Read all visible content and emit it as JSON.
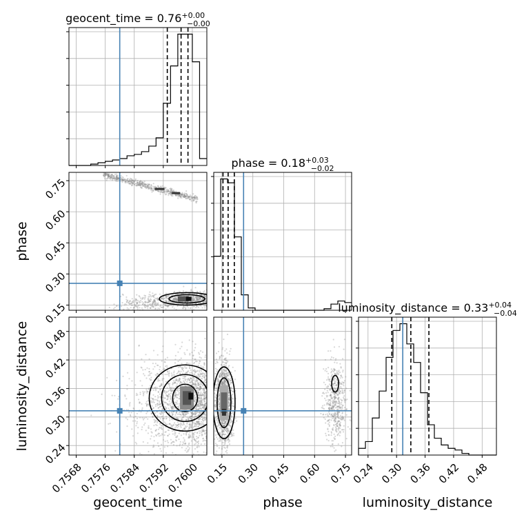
{
  "chart_data": {
    "type": "corner",
    "parameters": [
      "geocent_time",
      "phase",
      "luminosity_distance"
    ],
    "truths": {
      "geocent_time": 0.758,
      "phase": 0.255,
      "luminosity_distance": 0.313
    },
    "colors": {
      "truth": "#4682b4",
      "hist": "#000000",
      "scatter": "#8c8c8c",
      "grid": "#b0b0b0"
    },
    "panels": {
      "geocent_time": {
        "title": "geocent_time = 0.76",
        "title_sup": "+0.00",
        "title_sub": "−0.00",
        "quantiles": [
          0.75931,
          0.75969,
          0.75988
        ],
        "xlim": [
          0.7566,
          0.7604
        ],
        "bins_start": 0.7566,
        "bins_width": 0.0002,
        "counts": [
          0,
          0,
          0,
          1,
          2,
          3,
          4,
          5,
          7,
          8,
          10,
          14,
          20,
          45,
          72,
          95,
          95,
          75,
          5
        ],
        "ticks": [
          "0.7568",
          "0.7576",
          "0.7584",
          "0.7592",
          "0.7600"
        ],
        "tick_values": [
          0.7568,
          0.7576,
          0.7584,
          0.7592,
          0.76
        ]
      },
      "phase": {
        "title": "phase = 0.18",
        "title_sup": "+0.03",
        "title_sub": "−0.02",
        "quantiles": [
          0.155,
          0.18,
          0.21
        ],
        "xlim": [
          0.11,
          0.78
        ],
        "bins_start": 0.11,
        "bins_width": 0.0335,
        "counts": [
          70,
          170,
          165,
          95,
          20,
          3,
          0,
          0,
          0,
          0,
          0,
          0,
          0,
          0,
          0,
          0,
          2,
          8,
          12,
          10
        ],
        "ticks": [
          "0.15",
          "0.30",
          "0.45",
          "0.60",
          "0.75"
        ],
        "tick_values": [
          0.15,
          0.3,
          0.45,
          0.6,
          0.75
        ]
      },
      "luminosity_distance": {
        "title": "luminosity_distance = 0.33",
        "title_sup": "+0.04",
        "title_sub": "−0.04",
        "quantiles": [
          0.29,
          0.33,
          0.368
        ],
        "xlim": [
          0.22,
          0.51
        ],
        "bins_start": 0.22,
        "bins_width": 0.0145,
        "counts": [
          4,
          8,
          22,
          38,
          58,
          74,
          78,
          66,
          55,
          37,
          18,
          10,
          6,
          4,
          3,
          1,
          0,
          0,
          0,
          0
        ],
        "ticks": [
          "0.24",
          "0.30",
          "0.36",
          "0.42",
          "0.48"
        ],
        "tick_values": [
          0.24,
          0.3,
          0.36,
          0.42,
          0.48
        ]
      }
    },
    "ylims": {
      "phase": [
        0.125,
        0.79
      ],
      "luminosity_distance": [
        0.22,
        0.51
      ]
    },
    "yticks": {
      "phase": {
        "labels": [
          "0.15",
          "0.30",
          "0.45",
          "0.60",
          "0.75"
        ],
        "values": [
          0.15,
          0.3,
          0.45,
          0.6,
          0.75
        ]
      },
      "luminosity_distance": {
        "labels": [
          "0.24",
          "0.30",
          "0.36",
          "0.42",
          "0.48"
        ],
        "values": [
          0.24,
          0.3,
          0.36,
          0.42,
          0.48
        ]
      }
    },
    "grid": true
  }
}
